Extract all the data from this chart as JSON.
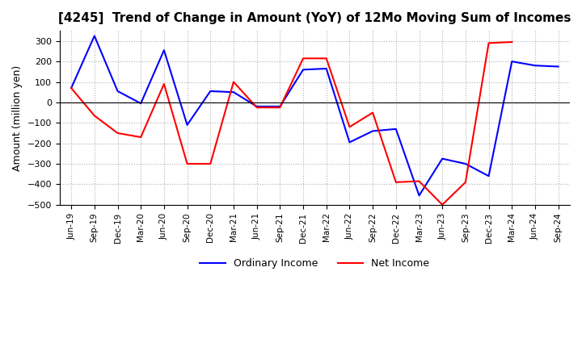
{
  "title": "[4245]  Trend of Change in Amount (YoY) of 12Mo Moving Sum of Incomes",
  "ylabel": "Amount (million yen)",
  "ylim": [
    -500,
    350
  ],
  "yticks": [
    -500,
    -400,
    -300,
    -200,
    -100,
    0,
    100,
    200,
    300
  ],
  "x_labels": [
    "Jun-19",
    "Sep-19",
    "Dec-19",
    "Mar-20",
    "Jun-20",
    "Sep-20",
    "Dec-20",
    "Mar-21",
    "Jun-21",
    "Sep-21",
    "Dec-21",
    "Mar-22",
    "Jun-22",
    "Sep-22",
    "Dec-22",
    "Mar-23",
    "Jun-23",
    "Sep-23",
    "Dec-23",
    "Mar-24",
    "Jun-24",
    "Sep-24"
  ],
  "ordinary_income": [
    70,
    325,
    55,
    -5,
    255,
    -110,
    55,
    50,
    -20,
    -20,
    160,
    165,
    -195,
    -140,
    -130,
    -455,
    -275,
    -300,
    -360,
    200,
    180,
    175
  ],
  "net_income": [
    70,
    -65,
    -150,
    -170,
    90,
    -300,
    -300,
    100,
    -25,
    -25,
    215,
    215,
    -120,
    -50,
    -390,
    -385,
    -500,
    -390,
    290,
    295,
    null,
    null
  ],
  "ordinary_income_color": "#0000ff",
  "net_income_color": "#ff0000",
  "background_color": "#ffffff",
  "grid_color": "#b0b0b0"
}
